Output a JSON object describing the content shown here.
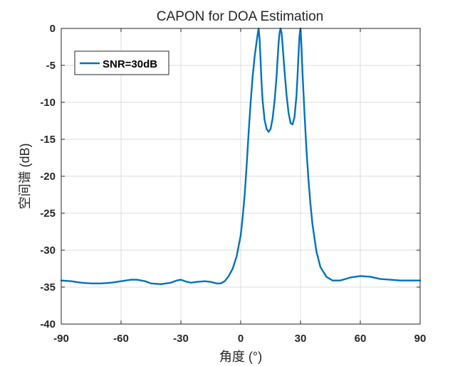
{
  "chart_data": {
    "type": "line",
    "title": "CAPON for DOA Estimation",
    "xlabel": "角度 (°)",
    "ylabel": "空间谱 (dB)",
    "xlim": [
      -90,
      90
    ],
    "ylim": [
      -40,
      0
    ],
    "xticks": [
      -90,
      -60,
      -30,
      0,
      30,
      60,
      90
    ],
    "yticks": [
      0,
      -5,
      -10,
      -15,
      -20,
      -25,
      -30,
      -35,
      -40
    ],
    "grid": true,
    "legend_position": "top-left",
    "colors": {
      "series": "#0072BD",
      "grid": "#dcdcdc",
      "axes": "#262626"
    },
    "series": [
      {
        "name": "SNR=30dB",
        "x": [
          -90,
          -85,
          -80,
          -75,
          -70,
          -65,
          -60,
          -55,
          -52,
          -48,
          -45,
          -40,
          -35,
          -32,
          -30,
          -28,
          -25,
          -22,
          -18,
          -15,
          -12,
          -10,
          -8,
          -6,
          -4,
          -2,
          0,
          1,
          2,
          3,
          4,
          5,
          6,
          7,
          8,
          8.5,
          9,
          9.5,
          10,
          10.5,
          11,
          12,
          13,
          14,
          15,
          16,
          17,
          18,
          18.5,
          19,
          19.5,
          20,
          20.5,
          21,
          22,
          23,
          24,
          25,
          26,
          27,
          28,
          28.5,
          29,
          29.5,
          30,
          30.5,
          31,
          32,
          33,
          34,
          35,
          36,
          38,
          40,
          43,
          46,
          50,
          55,
          60,
          65,
          70,
          75,
          80,
          85,
          90
        ],
        "y": [
          -34.1,
          -34.2,
          -34.4,
          -34.5,
          -34.5,
          -34.4,
          -34.2,
          -34.0,
          -34.0,
          -34.2,
          -34.5,
          -34.6,
          -34.4,
          -34.1,
          -34.0,
          -34.2,
          -34.4,
          -34.3,
          -34.2,
          -34.3,
          -34.5,
          -34.5,
          -34.2,
          -33.5,
          -32.5,
          -30.8,
          -28.0,
          -25.5,
          -22.5,
          -18.5,
          -14.0,
          -10.0,
          -6.5,
          -3.8,
          -1.8,
          -0.8,
          0,
          -1.5,
          -4.5,
          -7.5,
          -9.8,
          -12.4,
          -13.6,
          -14.0,
          -13.6,
          -12.2,
          -9.8,
          -6.5,
          -4.2,
          -2.0,
          -0.6,
          0,
          -0.6,
          -2.2,
          -5.8,
          -9.0,
          -11.4,
          -12.8,
          -13.0,
          -12.0,
          -9.0,
          -6.5,
          -3.5,
          -1.0,
          0,
          -2.5,
          -6.0,
          -11.5,
          -16.5,
          -20.5,
          -23.8,
          -26.5,
          -30.2,
          -32.3,
          -33.6,
          -34.1,
          -34.1,
          -33.7,
          -33.5,
          -33.6,
          -33.9,
          -34.0,
          -34.1,
          -34.1,
          -34.1
        ]
      }
    ]
  }
}
